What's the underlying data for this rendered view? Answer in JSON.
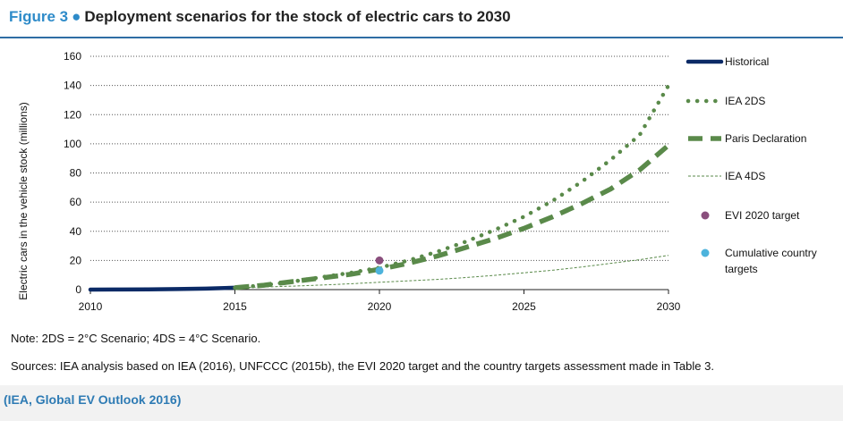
{
  "figure": {
    "number": "Figure 3",
    "title": "Deployment scenarios for the stock of electric cars to 2030"
  },
  "note": "Note: 2DS = 2°C Scenario; 4DS = 4°C Scenario.",
  "sources": "Sources: IEA analysis based on IEA (2016), UNFCCC (2015b), the EVI 2020 target and the country targets assessment made in Table 3.",
  "footer": "(IEA, Global EV Outlook 2016)",
  "colors": {
    "historical": "#0b2a66",
    "scenario_green": "#5a8a4a",
    "evi_target": "#8a4f7d",
    "country_targets": "#4db3dc",
    "accent_blue": "#2e8bc9"
  },
  "chart_data": {
    "type": "line",
    "title": "",
    "xlabel": "",
    "ylabel": "Electric cars in the vehicle stock (millions)",
    "xlim": [
      2010,
      2030
    ],
    "ylim": [
      0,
      160
    ],
    "x_ticks": [
      2010,
      2015,
      2020,
      2025,
      2030
    ],
    "y_ticks": [
      0,
      20,
      40,
      60,
      80,
      100,
      120,
      140,
      160
    ],
    "grid": "horizontal dotted",
    "legend_position": "right",
    "series": [
      {
        "name": "Historical",
        "style": "solid-thick",
        "color": "#0b2a66",
        "x": [
          2010,
          2011,
          2012,
          2013,
          2014,
          2015
        ],
        "y": [
          0.01,
          0.05,
          0.18,
          0.38,
          0.7,
          1.26
        ]
      },
      {
        "name": "IEA 2DS",
        "style": "dotted",
        "color": "#5a8a4a",
        "x": [
          2015,
          2016,
          2017,
          2018,
          2019,
          2020,
          2021,
          2022,
          2023,
          2024,
          2025,
          2026,
          2027,
          2028,
          2029,
          2030
        ],
        "y": [
          1.3,
          3,
          5.5,
          8.5,
          11.5,
          15,
          20,
          26,
          33,
          41,
          50,
          61,
          74,
          89,
          106,
          140
        ]
      },
      {
        "name": "Paris Declaration",
        "style": "dashed-thick",
        "color": "#5a8a4a",
        "x": [
          2015,
          2016,
          2017,
          2018,
          2019,
          2020,
          2021,
          2022,
          2023,
          2024,
          2025,
          2026,
          2027,
          2028,
          2029,
          2030
        ],
        "y": [
          1.3,
          3,
          5.5,
          8,
          10.5,
          14,
          18,
          23,
          29,
          35,
          42,
          50,
          59,
          69,
          82,
          99
        ]
      },
      {
        "name": "IEA 4DS",
        "style": "dashed-thin",
        "color": "#5a8a4a",
        "x": [
          2015,
          2016,
          2017,
          2018,
          2019,
          2020,
          2021,
          2022,
          2023,
          2024,
          2025,
          2026,
          2027,
          2028,
          2029,
          2030
        ],
        "y": [
          1.3,
          1.8,
          2.4,
          3.1,
          4,
          5,
          6,
          7,
          8.3,
          9.8,
          11.5,
          13.3,
          15.5,
          18,
          20.5,
          23.5
        ]
      }
    ],
    "points": [
      {
        "name": "EVI 2020 target",
        "x": 2020,
        "y": 20,
        "color": "#8a4f7d"
      },
      {
        "name": "Cumulative country targets",
        "x": 2020,
        "y": 13,
        "color": "#4db3dc"
      }
    ],
    "legend_labels": {
      "cumulative_line1": "Cumulative country",
      "cumulative_line2": "targets"
    }
  }
}
